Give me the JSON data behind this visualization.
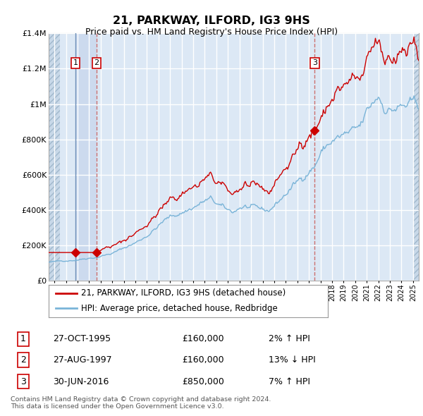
{
  "title": "21, PARKWAY, ILFORD, IG3 9HS",
  "subtitle": "Price paid vs. HM Land Registry's House Price Index (HPI)",
  "footer": "Contains HM Land Registry data © Crown copyright and database right 2024.\nThis data is licensed under the Open Government Licence v3.0.",
  "legend_entry1": "21, PARKWAY, ILFORD, IG3 9HS (detached house)",
  "legend_entry2": "HPI: Average price, detached house, Redbridge",
  "transactions": [
    {
      "label": "1",
      "date": "27-OCT-1995",
      "price": 160000,
      "hpi_change": "2% ↑ HPI",
      "year": 1995.82
    },
    {
      "label": "2",
      "date": "27-AUG-1997",
      "price": 160000,
      "hpi_change": "13% ↓ HPI",
      "year": 1997.65
    },
    {
      "label": "3",
      "date": "30-JUN-2016",
      "price": 850000,
      "hpi_change": "7% ↑ HPI",
      "year": 2016.5
    }
  ],
  "ylim": [
    0,
    1400000
  ],
  "yticks": [
    0,
    200000,
    400000,
    600000,
    800000,
    1000000,
    1200000,
    1400000
  ],
  "xlim_start": 1993.5,
  "xlim_end": 2025.5,
  "hpi_color": "#7ab4d8",
  "price_color": "#cc0000",
  "vline_color_solid": "#a0c0e0",
  "vline_color_dashed": "#e08080",
  "background_color": "#ffffff",
  "plot_bg_color": "#dce8f5",
  "hatch_color": "#c0cfe0",
  "grid_color": "#ffffff",
  "highlight_color": "#dce8f5"
}
